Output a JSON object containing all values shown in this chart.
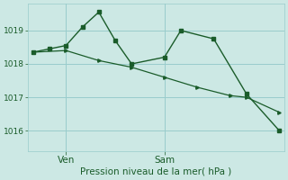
{
  "bg_color": "#cce8e4",
  "grid_color": "#99cccc",
  "line_color": "#1a5c2a",
  "title": "Pression niveau de la mer( hPa )",
  "ylim": [
    1015.4,
    1019.8
  ],
  "yticks": [
    1016,
    1017,
    1018,
    1019
  ],
  "line1_x": [
    0,
    1,
    2,
    3,
    4,
    5,
    6,
    8,
    9,
    11,
    13,
    15
  ],
  "line1_y": [
    1018.35,
    1018.45,
    1018.55,
    1019.1,
    1019.55,
    1018.7,
    1018.0,
    1018.2,
    1019.0,
    1018.75,
    1017.1,
    1016.0
  ],
  "line2_x": [
    0,
    2,
    4,
    6,
    8,
    10,
    12,
    13,
    15
  ],
  "line2_y": [
    1018.35,
    1018.4,
    1018.1,
    1017.9,
    1017.6,
    1017.3,
    1017.05,
    1017.0,
    1016.55
  ],
  "xlim": [
    -0.3,
    15.3
  ],
  "xtick_pos": [
    2,
    8
  ],
  "xtick_labels": [
    "Ven",
    "Sam"
  ],
  "ylabel_fontsize": 6.5,
  "xlabel_fontsize": 7.5,
  "title_fontsize": 7.5
}
